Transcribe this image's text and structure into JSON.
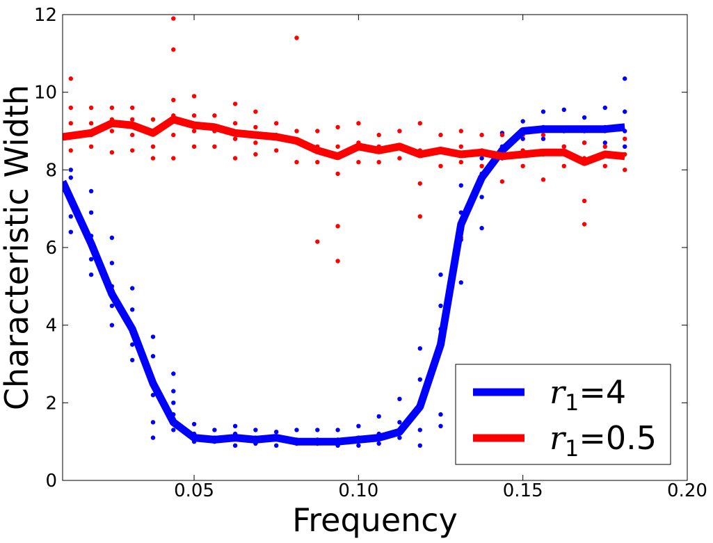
{
  "chart_data": {
    "type": "line",
    "title": "",
    "xlabel": "Frequency",
    "ylabel": "Characteristic Width",
    "xlim": [
      0.01,
      0.2
    ],
    "ylim": [
      0,
      12
    ],
    "xticks": [
      "0.05",
      "0.10",
      "0.15",
      "0.20"
    ],
    "xtick_values": [
      0.05,
      0.1,
      0.15,
      0.2
    ],
    "yticks": [
      "0",
      "2",
      "4",
      "6",
      "8",
      "10",
      "12"
    ],
    "ytick_values": [
      0,
      2,
      4,
      6,
      8,
      10,
      12
    ],
    "legend_position": "lower-right",
    "grid": false,
    "x": [
      0.01,
      0.0187,
      0.025,
      0.0312,
      0.0375,
      0.0437,
      0.05,
      0.0562,
      0.0625,
      0.0687,
      0.075,
      0.0812,
      0.0875,
      0.0937,
      0.1,
      0.1062,
      0.1125,
      0.1187,
      0.125,
      0.1312,
      0.1375,
      0.1437,
      0.15,
      0.1562,
      0.1625,
      0.1687,
      0.175,
      0.181
    ],
    "series": [
      {
        "name": "r1=4",
        "legend_symbol": "r",
        "legend_subscript": "1",
        "legend_value": "=4",
        "color": "#0000ff",
        "values": [
          7.7,
          6.1,
          4.8,
          3.9,
          2.5,
          1.5,
          1.1,
          1.05,
          1.1,
          1.05,
          1.1,
          1.0,
          1.0,
          1.0,
          1.05,
          1.1,
          1.25,
          1.9,
          3.5,
          6.6,
          7.8,
          8.5,
          9.0,
          9.05,
          9.05,
          9.05,
          9.05,
          9.1
        ],
        "scatter": [
          [
            0.0125,
            8.0
          ],
          [
            0.0125,
            7.8
          ],
          [
            0.0125,
            7.2
          ],
          [
            0.0125,
            6.8
          ],
          [
            0.0125,
            6.4
          ],
          [
            0.0187,
            7.45
          ],
          [
            0.0187,
            6.9
          ],
          [
            0.0187,
            6.3
          ],
          [
            0.0187,
            5.7
          ],
          [
            0.0187,
            5.3
          ],
          [
            0.025,
            6.25
          ],
          [
            0.025,
            5.6
          ],
          [
            0.025,
            5.0
          ],
          [
            0.025,
            4.5
          ],
          [
            0.025,
            4.0
          ],
          [
            0.0312,
            4.95
          ],
          [
            0.0312,
            4.4
          ],
          [
            0.0312,
            3.8
          ],
          [
            0.0312,
            3.5
          ],
          [
            0.0312,
            3.1
          ],
          [
            0.0375,
            3.7
          ],
          [
            0.0375,
            3.2
          ],
          [
            0.0375,
            2.6
          ],
          [
            0.0375,
            2.2
          ],
          [
            0.0375,
            1.5
          ],
          [
            0.0375,
            1.1
          ],
          [
            0.0437,
            2.75
          ],
          [
            0.0437,
            2.3
          ],
          [
            0.0437,
            2.0
          ],
          [
            0.0437,
            1.7
          ],
          [
            0.0437,
            1.3
          ],
          [
            0.05,
            1.45
          ],
          [
            0.05,
            1.2
          ],
          [
            0.05,
            1.0
          ],
          [
            0.0562,
            1.3
          ],
          [
            0.0562,
            1.1
          ],
          [
            0.0562,
            1.0
          ],
          [
            0.0625,
            1.4
          ],
          [
            0.0625,
            1.2
          ],
          [
            0.0625,
            0.9
          ],
          [
            0.0687,
            1.3
          ],
          [
            0.0687,
            1.1
          ],
          [
            0.0687,
            0.95
          ],
          [
            0.075,
            1.25
          ],
          [
            0.075,
            1.1
          ],
          [
            0.075,
            0.9
          ],
          [
            0.0812,
            1.3
          ],
          [
            0.0812,
            1.05
          ],
          [
            0.0812,
            0.95
          ],
          [
            0.0875,
            1.3
          ],
          [
            0.0875,
            1.05
          ],
          [
            0.0875,
            0.95
          ],
          [
            0.0937,
            1.3
          ],
          [
            0.0937,
            1.05
          ],
          [
            0.0937,
            0.9
          ],
          [
            0.1,
            1.4
          ],
          [
            0.1,
            1.1
          ],
          [
            0.1,
            0.9
          ],
          [
            0.1062,
            1.65
          ],
          [
            0.1062,
            1.2
          ],
          [
            0.1062,
            0.95
          ],
          [
            0.1125,
            2.1
          ],
          [
            0.1125,
            1.5
          ],
          [
            0.1125,
            1.1
          ],
          [
            0.1187,
            3.4
          ],
          [
            0.1187,
            2.6
          ],
          [
            0.1187,
            1.3
          ],
          [
            0.1187,
            0.9
          ],
          [
            0.125,
            5.3
          ],
          [
            0.125,
            4.5
          ],
          [
            0.125,
            3.9
          ],
          [
            0.125,
            1.7
          ],
          [
            0.125,
            1.4
          ],
          [
            0.1312,
            7.6
          ],
          [
            0.1312,
            6.9
          ],
          [
            0.1312,
            6.2
          ],
          [
            0.1312,
            5.1
          ],
          [
            0.1375,
            8.3
          ],
          [
            0.1375,
            7.9
          ],
          [
            0.1375,
            7.3
          ],
          [
            0.1375,
            6.5
          ],
          [
            0.1437,
            8.95
          ],
          [
            0.1437,
            8.6
          ],
          [
            0.1437,
            8.3
          ],
          [
            0.15,
            9.25
          ],
          [
            0.15,
            9.0
          ],
          [
            0.15,
            8.8
          ],
          [
            0.1562,
            9.5
          ],
          [
            0.1562,
            9.1
          ],
          [
            0.1562,
            8.8
          ],
          [
            0.1625,
            9.55
          ],
          [
            0.1625,
            9.0
          ],
          [
            0.1625,
            8.6
          ],
          [
            0.1687,
            9.35
          ],
          [
            0.1687,
            9.0
          ],
          [
            0.1687,
            8.7
          ],
          [
            0.175,
            9.6
          ],
          [
            0.175,
            9.1
          ],
          [
            0.175,
            8.7
          ],
          [
            0.181,
            10.35
          ],
          [
            0.181,
            9.5
          ],
          [
            0.181,
            9.0
          ],
          [
            0.181,
            8.6
          ]
        ]
      },
      {
        "name": "r1=0.5",
        "legend_symbol": "r",
        "legend_subscript": "1",
        "legend_value": "=0.5",
        "color": "#ff0000",
        "values": [
          8.85,
          8.95,
          9.2,
          9.15,
          8.95,
          9.3,
          9.15,
          9.1,
          8.95,
          8.9,
          8.85,
          8.75,
          8.5,
          8.35,
          8.6,
          8.5,
          8.6,
          8.4,
          8.5,
          8.4,
          8.45,
          8.35,
          8.4,
          8.45,
          8.45,
          8.2,
          8.4,
          8.35
        ],
        "scatter": [
          [
            0.0125,
            10.35
          ],
          [
            0.0125,
            9.6
          ],
          [
            0.0125,
            9.2
          ],
          [
            0.0125,
            8.9
          ],
          [
            0.0125,
            8.5
          ],
          [
            0.0187,
            9.6
          ],
          [
            0.0187,
            9.2
          ],
          [
            0.0187,
            8.9
          ],
          [
            0.0187,
            8.6
          ],
          [
            0.025,
            9.6
          ],
          [
            0.025,
            9.3
          ],
          [
            0.025,
            9.0
          ],
          [
            0.025,
            8.45
          ],
          [
            0.0312,
            9.6
          ],
          [
            0.0312,
            9.3
          ],
          [
            0.0312,
            8.9
          ],
          [
            0.0312,
            8.5
          ],
          [
            0.0375,
            9.3
          ],
          [
            0.0375,
            9.0
          ],
          [
            0.0375,
            8.6
          ],
          [
            0.0375,
            8.3
          ],
          [
            0.0437,
            11.9
          ],
          [
            0.0437,
            11.1
          ],
          [
            0.0437,
            9.8
          ],
          [
            0.0437,
            9.4
          ],
          [
            0.0437,
            8.9
          ],
          [
            0.0437,
            8.3
          ],
          [
            0.05,
            9.9
          ],
          [
            0.05,
            9.4
          ],
          [
            0.05,
            9.0
          ],
          [
            0.05,
            8.6
          ],
          [
            0.0562,
            9.4
          ],
          [
            0.0562,
            9.0
          ],
          [
            0.0562,
            8.6
          ],
          [
            0.0625,
            9.7
          ],
          [
            0.0625,
            9.2
          ],
          [
            0.0625,
            8.8
          ],
          [
            0.0625,
            8.3
          ],
          [
            0.0687,
            9.5
          ],
          [
            0.0687,
            9.1
          ],
          [
            0.0687,
            8.7
          ],
          [
            0.0687,
            8.4
          ],
          [
            0.075,
            9.2
          ],
          [
            0.075,
            8.9
          ],
          [
            0.075,
            8.5
          ],
          [
            0.0812,
            11.4
          ],
          [
            0.0812,
            9.0
          ],
          [
            0.0812,
            8.7
          ],
          [
            0.0812,
            8.2
          ],
          [
            0.0875,
            9.0
          ],
          [
            0.0875,
            8.6
          ],
          [
            0.0875,
            8.2
          ],
          [
            0.0875,
            6.15
          ],
          [
            0.0937,
            9.1
          ],
          [
            0.0937,
            8.6
          ],
          [
            0.0937,
            7.9
          ],
          [
            0.0937,
            6.55
          ],
          [
            0.0937,
            5.65
          ],
          [
            0.1,
            9.2
          ],
          [
            0.1,
            8.7
          ],
          [
            0.1,
            8.2
          ],
          [
            0.1062,
            8.9
          ],
          [
            0.1062,
            8.6
          ],
          [
            0.1062,
            8.2
          ],
          [
            0.1125,
            9.0
          ],
          [
            0.1125,
            8.6
          ],
          [
            0.1125,
            8.3
          ],
          [
            0.1187,
            9.2
          ],
          [
            0.1187,
            8.5
          ],
          [
            0.1187,
            7.65
          ],
          [
            0.1187,
            6.8
          ],
          [
            0.125,
            8.9
          ],
          [
            0.125,
            8.5
          ],
          [
            0.125,
            8.1
          ],
          [
            0.1312,
            9.0
          ],
          [
            0.1312,
            8.6
          ],
          [
            0.1312,
            8.2
          ],
          [
            0.1312,
            6.25
          ],
          [
            0.1375,
            8.9
          ],
          [
            0.1375,
            8.5
          ],
          [
            0.1375,
            8.1
          ],
          [
            0.1375,
            7.75
          ],
          [
            0.1437,
            8.9
          ],
          [
            0.1437,
            8.5
          ],
          [
            0.1437,
            7.7
          ],
          [
            0.15,
            8.9
          ],
          [
            0.15,
            8.5
          ],
          [
            0.15,
            8.1
          ],
          [
            0.1562,
            8.9
          ],
          [
            0.1562,
            8.4
          ],
          [
            0.1562,
            7.75
          ],
          [
            0.1625,
            9.0
          ],
          [
            0.1625,
            8.6
          ],
          [
            0.1625,
            8.1
          ],
          [
            0.1687,
            8.7
          ],
          [
            0.1687,
            8.3
          ],
          [
            0.1687,
            7.2
          ],
          [
            0.1687,
            6.6
          ],
          [
            0.175,
            9.0
          ],
          [
            0.175,
            8.6
          ],
          [
            0.175,
            8.1
          ],
          [
            0.181,
            8.8
          ],
          [
            0.181,
            8.4
          ],
          [
            0.181,
            8.0
          ]
        ]
      }
    ]
  }
}
